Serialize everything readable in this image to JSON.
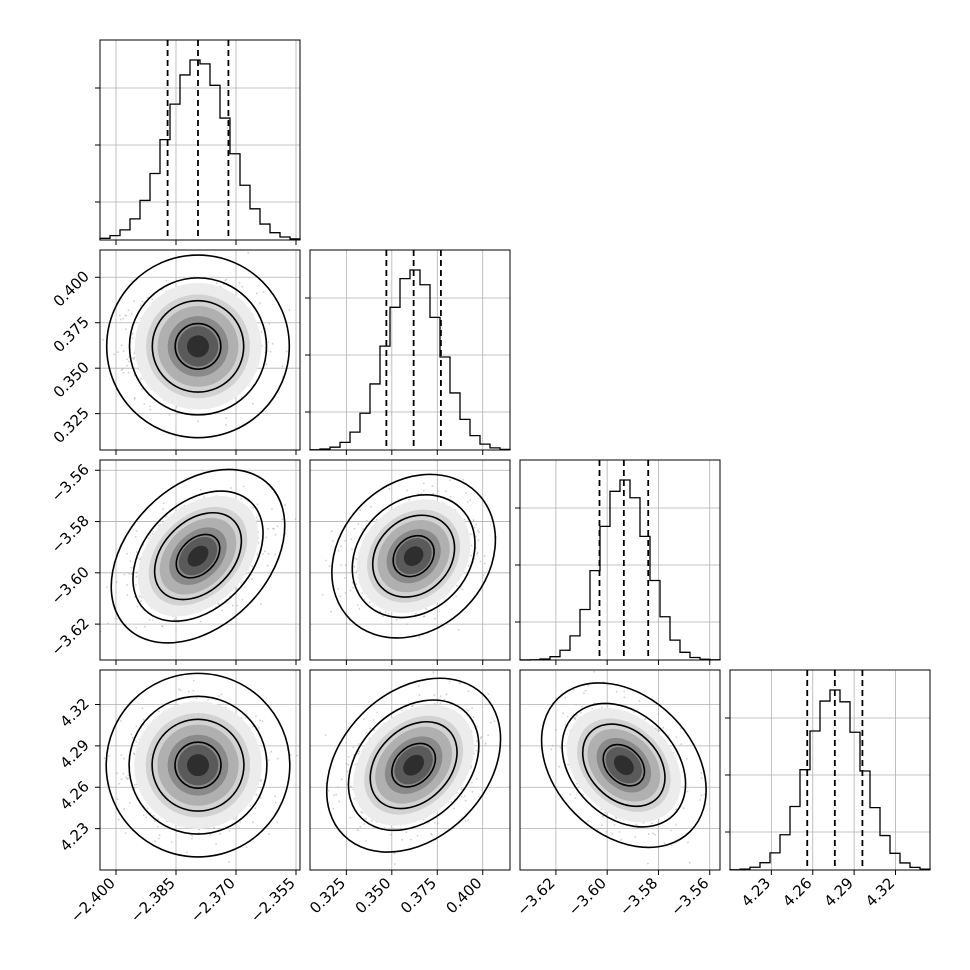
{
  "chart_data": {
    "type": "corner",
    "grid": true,
    "parameters": [
      {
        "range": [
          -2.404,
          -2.354
        ],
        "mean": -2.3795,
        "sd": 0.0076,
        "quantiles": [
          -2.3871,
          -2.3795,
          -2.3719
        ],
        "ticks": [
          -2.4,
          -2.385,
          -2.37,
          -2.355
        ],
        "tick_labels": [
          "−2.400",
          "−2.385",
          "−2.370",
          "−2.355"
        ]
      },
      {
        "range": [
          0.305,
          0.415
        ],
        "mean": 0.362,
        "sd": 0.015,
        "quantiles": [
          0.347,
          0.362,
          0.377
        ],
        "ticks": [
          0.325,
          0.35,
          0.375,
          0.4
        ],
        "tick_labels": [
          "0.325",
          "0.350",
          "0.375",
          "0.400"
        ]
      },
      {
        "range": [
          -3.634,
          -3.556
        ],
        "mean": -3.5935,
        "sd": 0.0095,
        "quantiles": [
          -3.603,
          -3.5935,
          -3.584
        ],
        "ticks": [
          -3.62,
          -3.6,
          -3.58,
          -3.56
        ],
        "tick_labels": [
          "−3.62",
          "−3.60",
          "−3.58",
          "−3.56"
        ]
      },
      {
        "range": [
          4.2,
          4.345
        ],
        "mean": 4.276,
        "sd": 0.02,
        "quantiles": [
          4.256,
          4.276,
          4.296
        ],
        "ticks": [
          4.23,
          4.26,
          4.29,
          4.32
        ],
        "tick_labels": [
          "4.23",
          "4.26",
          "4.29",
          "4.32"
        ]
      }
    ],
    "correlations": {
      "1,0": 0.0,
      "2,0": 0.35,
      "2,1": 0.2,
      "3,0": 0.0,
      "3,1": 0.3,
      "3,2": -0.3
    },
    "contour_levels_sigma": [
      0.5,
      1.0,
      1.5,
      2.0
    ]
  }
}
